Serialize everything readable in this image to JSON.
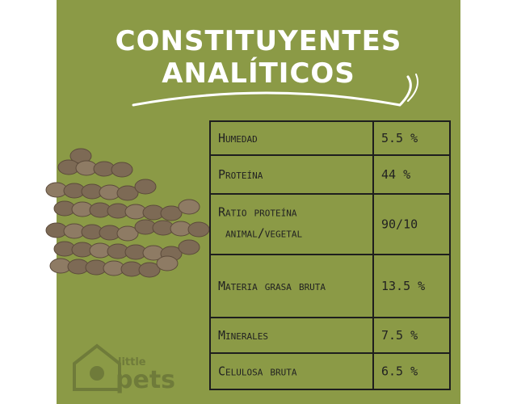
{
  "header": {
    "title_lines": [
      "CONSTITUYENTES",
      "ANALÍTICOS"
    ]
  },
  "table": {
    "rows": [
      [
        "Humedad",
        "5.5 %"
      ],
      [
        "Proteína",
        "44 %"
      ],
      [
        "Ratio proteína animal/vegetal",
        "90/10"
      ],
      [
        "Materia grasa bruta",
        "13.5 %"
      ],
      [
        "Minerales",
        "7.5 %"
      ],
      [
        "Celulosa bruta",
        "6.5 %"
      ]
    ]
  },
  "logo": {
    "top": "little",
    "bottom": "pets"
  }
}
